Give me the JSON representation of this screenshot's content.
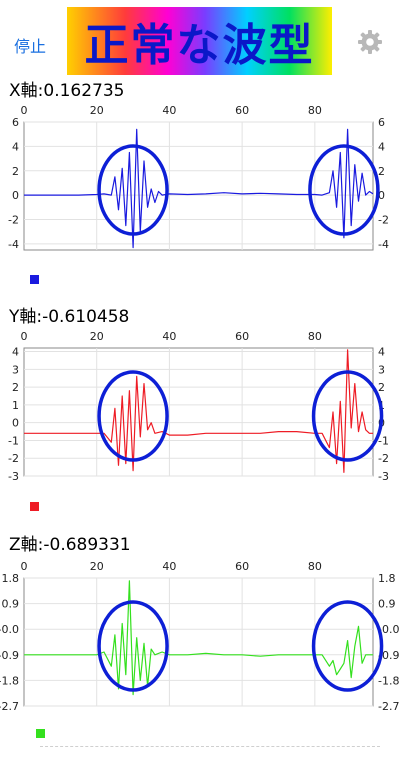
{
  "header": {
    "stop_label": "停止",
    "title": "正常な波型",
    "settings_icon": "gear-icon"
  },
  "colors": {
    "accent": "#1a6fe0",
    "title_text": "#0a18c8",
    "circle": "#0d1fd6",
    "x_series": "#1a1adf",
    "y_series": "#ee1c25",
    "z_series": "#34e01e"
  },
  "chart_data": [
    {
      "type": "line",
      "label": "X軸:0.162735",
      "x_ticks": [
        "0",
        "20",
        "40",
        "60",
        "80"
      ],
      "y_ticks": [
        "6",
        "4",
        "2",
        "0",
        "-2",
        "-4"
      ],
      "xlim": [
        0,
        96
      ],
      "ylim": [
        -4.5,
        6
      ],
      "grid": true,
      "series_color": "#1a1adf",
      "x": [
        0,
        5,
        10,
        15,
        20,
        22,
        24,
        25,
        26,
        27,
        28,
        29,
        30,
        31,
        32,
        33,
        34,
        35,
        36,
        37,
        38,
        40,
        45,
        50,
        55,
        60,
        65,
        70,
        75,
        80,
        82,
        84,
        85,
        86,
        87,
        88,
        89,
        90,
        91,
        92,
        93,
        94,
        95,
        96
      ],
      "y": [
        0,
        0,
        0,
        0,
        0.05,
        0.1,
        0,
        1.5,
        -1.2,
        2.2,
        -2.5,
        3.5,
        -4.3,
        5.4,
        -3,
        2.8,
        -1,
        0.5,
        -0.6,
        0.3,
        0,
        0.1,
        0.05,
        0.1,
        0.2,
        0.1,
        0.15,
        0.1,
        0.05,
        0.05,
        0,
        0.2,
        2,
        -1,
        3.5,
        -3.5,
        5.4,
        -2.5,
        2.5,
        -0.5,
        1.8,
        0,
        0.3,
        0.1
      ],
      "highlight_circles_at_x": [
        30,
        88
      ]
    },
    {
      "type": "line",
      "label": "Y軸:-0.610458",
      "x_ticks": [
        "0",
        "20",
        "40",
        "60",
        "80"
      ],
      "y_ticks": [
        "4",
        "3",
        "2",
        "1",
        "0",
        "-1",
        "-2",
        "-3"
      ],
      "xlim": [
        0,
        96
      ],
      "ylim": [
        -3,
        4.2
      ],
      "grid": true,
      "series_color": "#ee1c25",
      "x": [
        0,
        5,
        10,
        15,
        20,
        22,
        24,
        25,
        26,
        27,
        28,
        29,
        30,
        31,
        32,
        33,
        34,
        35,
        36,
        38,
        40,
        45,
        50,
        55,
        60,
        65,
        70,
        75,
        80,
        82,
        84,
        85,
        86,
        87,
        88,
        89,
        90,
        91,
        92,
        93,
        94,
        95,
        96
      ],
      "y": [
        -0.6,
        -0.6,
        -0.6,
        -0.6,
        -0.6,
        -0.6,
        -1.1,
        0.8,
        -2.4,
        1.5,
        -2.3,
        1.8,
        -2.7,
        2.6,
        -0.8,
        2.2,
        -0.4,
        0,
        -0.6,
        -0.5,
        -0.7,
        -0.7,
        -0.6,
        -0.6,
        -0.6,
        -0.6,
        -0.5,
        -0.5,
        -0.6,
        -0.6,
        -1.4,
        0.6,
        -2.3,
        1.2,
        -2.8,
        4.1,
        -0.3,
        2.2,
        -0.5,
        0.6,
        -0.4,
        -0.6,
        -0.6
      ],
      "highlight_circles_at_x": [
        30,
        89
      ]
    },
    {
      "type": "line",
      "label": "Z軸:-0.689331",
      "x_ticks": [
        "0",
        "20",
        "40",
        "60",
        "80"
      ],
      "y_ticks": [
        "1.8",
        "0.9",
        "-0.0",
        "-0.9",
        "-1.8",
        "-2.7"
      ],
      "xlim": [
        0,
        96
      ],
      "ylim": [
        -2.7,
        1.8
      ],
      "grid": true,
      "series_color": "#34e01e",
      "x": [
        0,
        5,
        10,
        15,
        20,
        22,
        24,
        25,
        26,
        27,
        28,
        29,
        30,
        31,
        32,
        33,
        34,
        35,
        36,
        38,
        40,
        45,
        50,
        55,
        60,
        65,
        70,
        75,
        80,
        82,
        84,
        85,
        86,
        87,
        88,
        89,
        90,
        91,
        92,
        93,
        94,
        95,
        96
      ],
      "y": [
        -0.9,
        -0.9,
        -0.9,
        -0.9,
        -0.9,
        -0.8,
        -1.3,
        -0.2,
        -2.1,
        0.2,
        -1.6,
        1.7,
        -2.3,
        -0.3,
        -1.8,
        -0.5,
        -2,
        -0.7,
        -0.9,
        -0.8,
        -0.9,
        -0.9,
        -0.85,
        -0.9,
        -0.9,
        -0.95,
        -0.9,
        -0.9,
        -0.9,
        -0.9,
        -1.3,
        -1.1,
        -1.6,
        -1.4,
        -1.2,
        -0.4,
        -1.7,
        -0.6,
        0.1,
        -1.2,
        -0.9,
        -0.9,
        -0.9
      ],
      "highlight_circles_at_x": [
        30,
        89
      ]
    }
  ]
}
